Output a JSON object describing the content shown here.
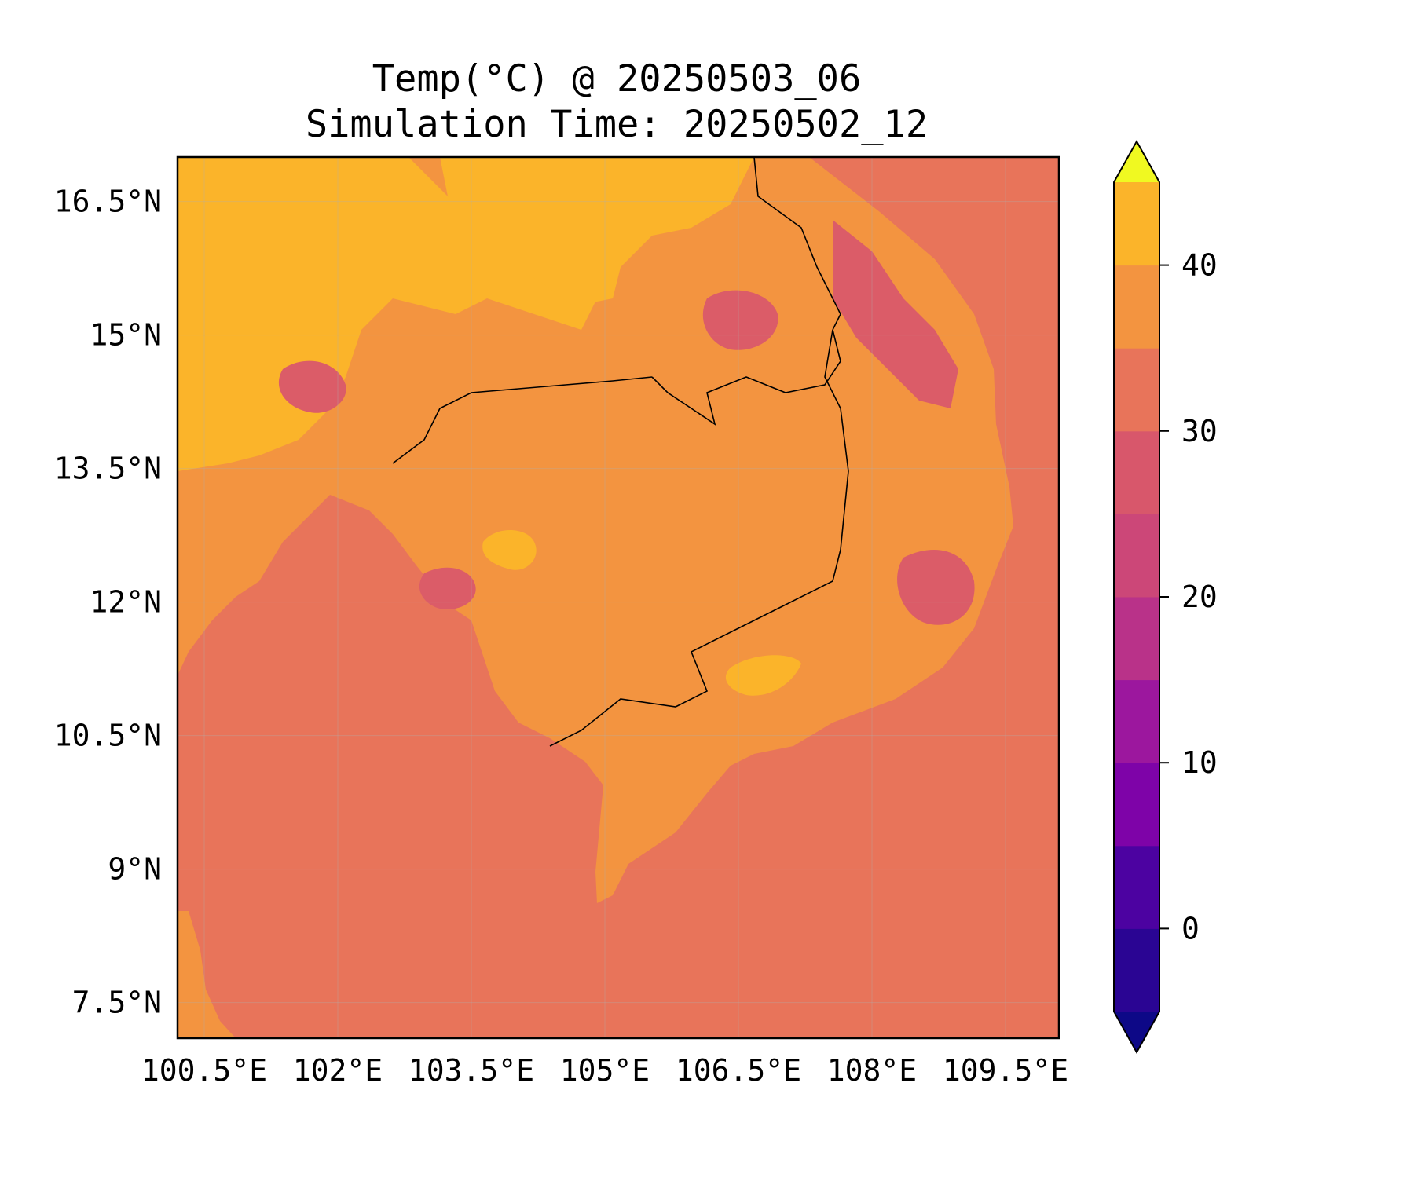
{
  "title": {
    "line1": "Temp(°C) @ 20250503_06",
    "line2": "Simulation Time: 20250502_12"
  },
  "map": {
    "variable": "Temp",
    "unit": "°C",
    "valid_time": "20250503_06",
    "simulation_time": "20250502_12",
    "lon_range": [
      100.2,
      110.1
    ],
    "lat_range": [
      7.1,
      17.0
    ],
    "lon_ticks": [
      "100.5°E",
      "102°E",
      "103.5°E",
      "105°E",
      "106.5°E",
      "108°E",
      "109.5°E"
    ],
    "lat_ticks": [
      "16.5°N",
      "15°N",
      "13.5°N",
      "12°N",
      "10.5°N",
      "9°N",
      "7.5°N"
    ],
    "gridlines": true,
    "ocean_color": "#e8745a",
    "land_base_color": "#f39440",
    "hot_color": "#fbb42a",
    "cool_color": "#db5c68"
  },
  "colorbar": {
    "ticks": [
      "40",
      "30",
      "20",
      "10",
      "0"
    ],
    "extend": "both",
    "levels": [
      -5,
      0,
      5,
      10,
      15,
      20,
      25,
      30,
      35,
      40,
      45
    ],
    "colors": [
      "#0d0887",
      "#2a0593",
      "#4c02a1",
      "#7e03a8",
      "#9c179e",
      "#b93289",
      "#cc4778",
      "#d8576b",
      "#e8745a",
      "#f39440",
      "#fbb42a",
      "#f1e12a",
      "#f0f921"
    ]
  }
}
